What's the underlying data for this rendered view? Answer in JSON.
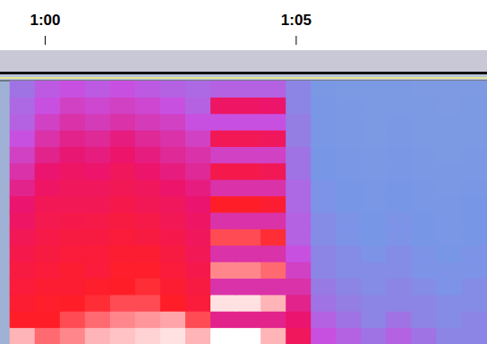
{
  "chart_data": {
    "type": "heatmap",
    "xlim": [
      59.1,
      68.8
    ],
    "xticks": [
      {
        "value": 60,
        "label": "1:00"
      },
      {
        "value": 65,
        "label": "1:05"
      }
    ],
    "tick_labels": "x",
    "x": [
      59.55,
      60.05,
      60.55,
      61.05,
      61.55,
      62.05,
      62.55,
      63.05,
      63.55,
      64.05,
      64.55,
      65.05,
      65.55,
      66.05,
      66.55,
      67.05,
      67.55,
      68.05,
      68.55
    ],
    "values": [
      [
        95,
        90,
        92,
        95,
        96,
        97,
        98,
        95,
        100,
        100,
        95,
        70,
        45,
        40,
        35,
        40,
        35,
        30,
        30
      ],
      [
        85,
        85,
        88,
        90,
        92,
        93,
        94,
        88,
        60,
        60,
        60,
        65,
        40,
        35,
        30,
        35,
        30,
        28,
        30
      ],
      [
        82,
        84,
        85,
        86,
        88,
        88,
        85,
        80,
        98,
        98,
        95,
        60,
        35,
        32,
        30,
        30,
        30,
        28,
        28
      ],
      [
        80,
        82,
        82,
        84,
        85,
        86,
        82,
        78,
        55,
        55,
        55,
        55,
        33,
        30,
        28,
        30,
        28,
        26,
        28
      ],
      [
        78,
        80,
        82,
        80,
        84,
        84,
        80,
        75,
        92,
        92,
        90,
        50,
        30,
        28,
        28,
        28,
        26,
        26,
        26
      ],
      [
        75,
        78,
        80,
        80,
        82,
        82,
        78,
        72,
        55,
        55,
        55,
        45,
        30,
        28,
        26,
        28,
        26,
        25,
        26
      ],
      [
        72,
        76,
        78,
        78,
        80,
        78,
        75,
        70,
        88,
        88,
        86,
        40,
        28,
        26,
        25,
        26,
        25,
        24,
        25
      ],
      [
        68,
        74,
        75,
        76,
        78,
        76,
        72,
        68,
        55,
        55,
        55,
        40,
        28,
        26,
        25,
        26,
        25,
        24,
        25
      ],
      [
        65,
        72,
        72,
        72,
        75,
        72,
        70,
        65,
        85,
        85,
        82,
        38,
        26,
        25,
        24,
        25,
        24,
        24,
        25
      ],
      [
        60,
        68,
        70,
        70,
        72,
        70,
        66,
        62,
        55,
        55,
        55,
        38,
        26,
        25,
        24,
        25,
        24,
        23,
        24
      ],
      [
        55,
        65,
        68,
        66,
        70,
        66,
        62,
        58,
        75,
        75,
        72,
        35,
        25,
        24,
        23,
        24,
        23,
        23,
        23
      ],
      [
        50,
        60,
        64,
        62,
        66,
        62,
        58,
        55,
        50,
        50,
        50,
        35,
        25,
        24,
        23,
        24,
        23,
        22,
        23
      ],
      [
        45,
        55,
        60,
        58,
        62,
        58,
        55,
        50,
        72,
        72,
        70,
        32,
        24,
        23,
        22,
        23,
        22,
        22,
        22
      ],
      [
        40,
        50,
        55,
        52,
        55,
        52,
        50,
        45,
        45,
        45,
        45,
        32,
        24,
        23,
        22,
        23,
        22,
        22,
        22
      ],
      [
        38,
        45,
        50,
        48,
        50,
        48,
        45,
        40,
        68,
        68,
        66,
        30,
        24,
        23,
        22,
        22,
        22,
        21,
        22
      ],
      [
        35,
        42,
        45,
        42,
        45,
        42,
        40,
        38,
        40,
        40,
        40,
        30,
        23,
        22,
        22,
        22,
        21,
        21,
        21
      ]
    ]
  }
}
